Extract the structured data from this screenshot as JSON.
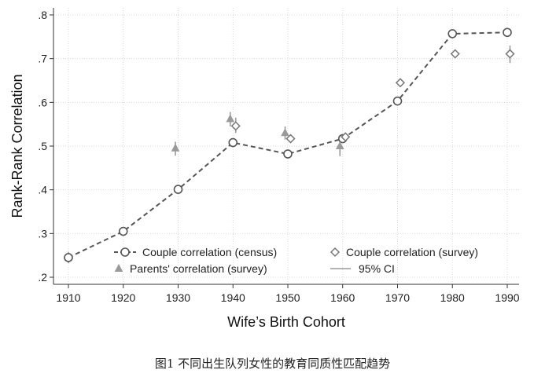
{
  "caption": "图1  不同出生队列女性的教育同质性匹配趋势",
  "chart_data": {
    "type": "line",
    "xlabel": "Wife’s Birth Cohort",
    "ylabel": "Rank-Rank Correlation",
    "xlim": [
      1910,
      1990
    ],
    "ylim": [
      0.2,
      0.8
    ],
    "x_ticks": [
      1910,
      1920,
      1930,
      1940,
      1950,
      1960,
      1970,
      1980,
      1990
    ],
    "y_ticks": [
      0.2,
      0.3,
      0.4,
      0.5,
      0.6,
      0.7,
      0.8
    ],
    "x_tick_labels": [
      "1910",
      "1920",
      "1930",
      "1940",
      "1950",
      "1960",
      "1970",
      "1980",
      "1990"
    ],
    "y_tick_labels": [
      ".2",
      ".3",
      ".4",
      ".5",
      ".6",
      ".7",
      ".8"
    ],
    "grid": true,
    "legend_position": "bottom-inside",
    "series": [
      {
        "name": "Couple correlation (census)",
        "marker": "circle",
        "line": "dashed",
        "color": "#555555",
        "x": [
          1910,
          1920,
          1930,
          1940,
          1950,
          1960,
          1970,
          1980,
          1990
        ],
        "y": [
          0.245,
          0.305,
          0.401,
          0.508,
          0.482,
          0.517,
          0.603,
          0.757,
          0.76
        ],
        "ci_low": [
          0.232,
          null,
          null,
          null,
          null,
          null,
          null,
          null,
          null
        ],
        "ci_high": [
          0.258,
          null,
          null,
          null,
          null,
          null,
          null,
          null,
          null
        ]
      },
      {
        "name": "Couple correlation (survey)",
        "marker": "diamond",
        "line": "none",
        "color": "#777777",
        "x": [
          1940.5,
          1950.5,
          1960.5,
          1970.5,
          1980.5,
          1990.5
        ],
        "y": [
          0.546,
          0.517,
          0.521,
          0.645,
          0.711,
          0.711
        ],
        "ci_low": [
          0.53,
          0.51,
          0.515,
          0.64,
          0.705,
          0.69
        ],
        "ci_high": [
          0.565,
          0.525,
          0.527,
          0.65,
          0.718,
          0.73
        ]
      },
      {
        "name": "Parents' correlation (survey)",
        "marker": "triangle",
        "line": "none",
        "color": "#9a9a9a",
        "x": [
          1929.5,
          1939.5,
          1949.5,
          1959.5
        ],
        "y": [
          0.495,
          0.562,
          0.53,
          0.5
        ],
        "ci_low": [
          0.478,
          0.545,
          0.515,
          0.477
        ],
        "ci_high": [
          0.51,
          0.578,
          0.545,
          0.52
        ]
      },
      {
        "name": "95% CI",
        "marker": "line",
        "line": "solid",
        "color": "#9a9a9a"
      }
    ]
  }
}
